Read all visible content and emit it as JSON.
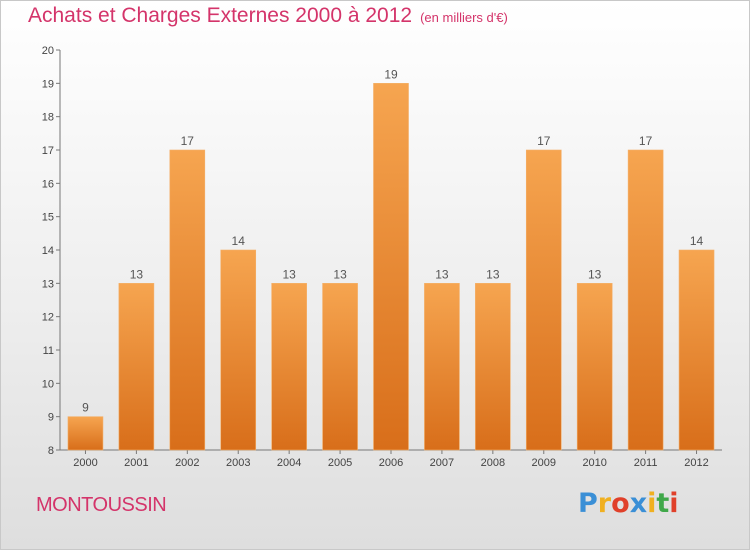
{
  "title": "Achats et Charges Externes 2000 à 2012",
  "unit": "(en milliers d'€)",
  "commune": "MONTOUSSIN",
  "logo": {
    "text": "Proxiti",
    "colors": [
      "#3a8fd6",
      "#f0b020",
      "#e0402a",
      "#3a8fd6",
      "#f0b020",
      "#40a84a",
      "#e0402a"
    ]
  },
  "colors": {
    "title": "#d4346a",
    "bar_top": "#f6a550",
    "bar_bottom": "#d86e1a",
    "bar_edge": "#f4b06a"
  },
  "chart_data": {
    "type": "bar",
    "categories": [
      "2000",
      "2001",
      "2002",
      "2003",
      "2004",
      "2005",
      "2006",
      "2007",
      "2008",
      "2009",
      "2010",
      "2011",
      "2012"
    ],
    "values": [
      9,
      13,
      17,
      14,
      13,
      13,
      19,
      13,
      13,
      17,
      13,
      17,
      14
    ],
    "yticks": [
      8,
      9,
      10,
      11,
      12,
      13,
      14,
      15,
      16,
      17,
      18,
      19,
      20
    ],
    "ylim": [
      8,
      20
    ],
    "grid": false,
    "xlabel": "",
    "ylabel": ""
  }
}
